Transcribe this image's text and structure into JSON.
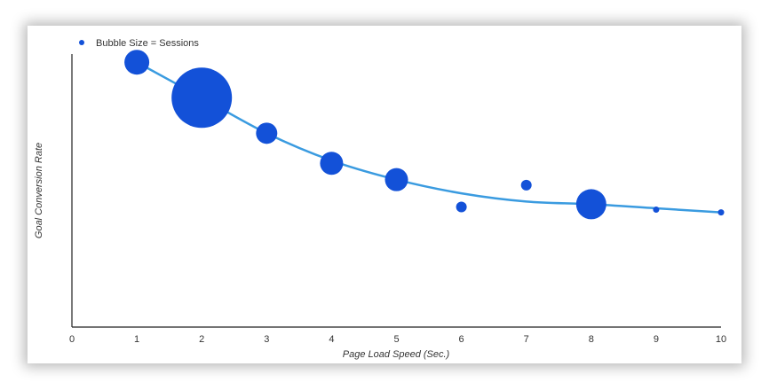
{
  "chart_data": {
    "type": "scatter",
    "legend": {
      "label": "Bubble Size = Sessions",
      "position": "top-left"
    },
    "xlabel": "Page Load Speed (Sec.)",
    "ylabel": "Goal Conversion Rate",
    "xlim": [
      0,
      10
    ],
    "ylim": [
      0,
      100
    ],
    "x_ticks": [
      "0",
      "1",
      "2",
      "3",
      "4",
      "5",
      "6",
      "7",
      "8",
      "9",
      "10"
    ],
    "show_y_ticks": false,
    "grid": false,
    "colors": {
      "bubble": "#1351d8",
      "trend": "#3a9be0"
    },
    "points": [
      {
        "x": 1,
        "y": 97,
        "size": 14
      },
      {
        "x": 2,
        "y": 84,
        "size": 34
      },
      {
        "x": 3,
        "y": 71,
        "size": 12
      },
      {
        "x": 4,
        "y": 60,
        "size": 13
      },
      {
        "x": 5,
        "y": 54,
        "size": 13
      },
      {
        "x": 6,
        "y": 44,
        "size": 6
      },
      {
        "x": 7,
        "y": 52,
        "size": 6
      },
      {
        "x": 8,
        "y": 45,
        "size": 17
      },
      {
        "x": 9,
        "y": 43,
        "size": 3.5
      },
      {
        "x": 10,
        "y": 42,
        "size": 3.5
      }
    ],
    "trendline": {
      "x": [
        1,
        2,
        3,
        4,
        5,
        6,
        7,
        8,
        9,
        10
      ],
      "y": [
        97,
        84,
        71,
        61,
        54,
        49,
        46,
        45,
        43.5,
        42
      ]
    }
  }
}
